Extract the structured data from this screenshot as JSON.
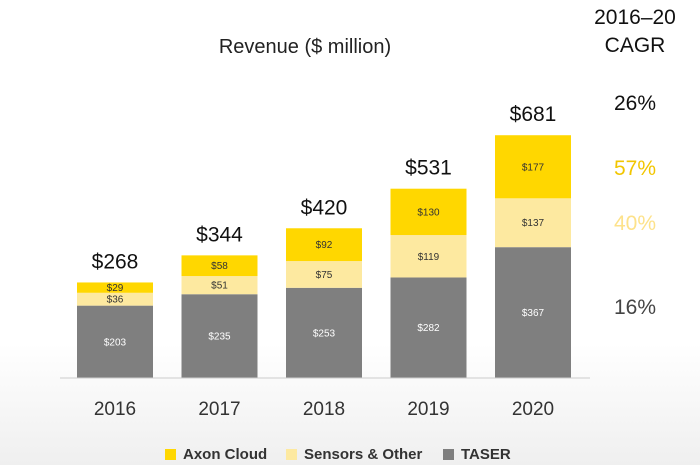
{
  "chart_data": {
    "type": "bar",
    "stacked": true,
    "title": "Revenue ($ million)",
    "categories": [
      "2016",
      "2017",
      "2018",
      "2019",
      "2020"
    ],
    "series": [
      {
        "name": "TASER",
        "color": "#7f7f7f",
        "values": [
          203,
          235,
          253,
          282,
          367
        ],
        "labels": [
          "$203",
          "$235",
          "$253",
          "$282",
          "$367"
        ]
      },
      {
        "name": "Sensors & Other",
        "color": "#fde9a0",
        "values": [
          36,
          51,
          75,
          119,
          137
        ],
        "labels": [
          "$36",
          "$51",
          "$75",
          "$119",
          "$137"
        ]
      },
      {
        "name": "Axon Cloud",
        "color": "#ffd700",
        "values": [
          29,
          58,
          92,
          130,
          177
        ],
        "labels": [
          "$29",
          "$58",
          "$92",
          "$130",
          "$177"
        ]
      }
    ],
    "totals": [
      268,
      344,
      420,
      531,
      681
    ],
    "total_labels": [
      "$268",
      "$344",
      "$420",
      "$531",
      "$681"
    ],
    "ylim": [
      0,
      700
    ],
    "grid": false,
    "legend_position": "bottom"
  },
  "cagr": {
    "heading_line1": "2016–20",
    "heading_line2": "CAGR",
    "rows": [
      {
        "value": "26%",
        "color": "#111111"
      },
      {
        "value": "57%",
        "color": "#f2c600"
      },
      {
        "value": "40%",
        "color": "#fde28a"
      },
      {
        "value": "16%",
        "color": "#444444"
      }
    ]
  }
}
